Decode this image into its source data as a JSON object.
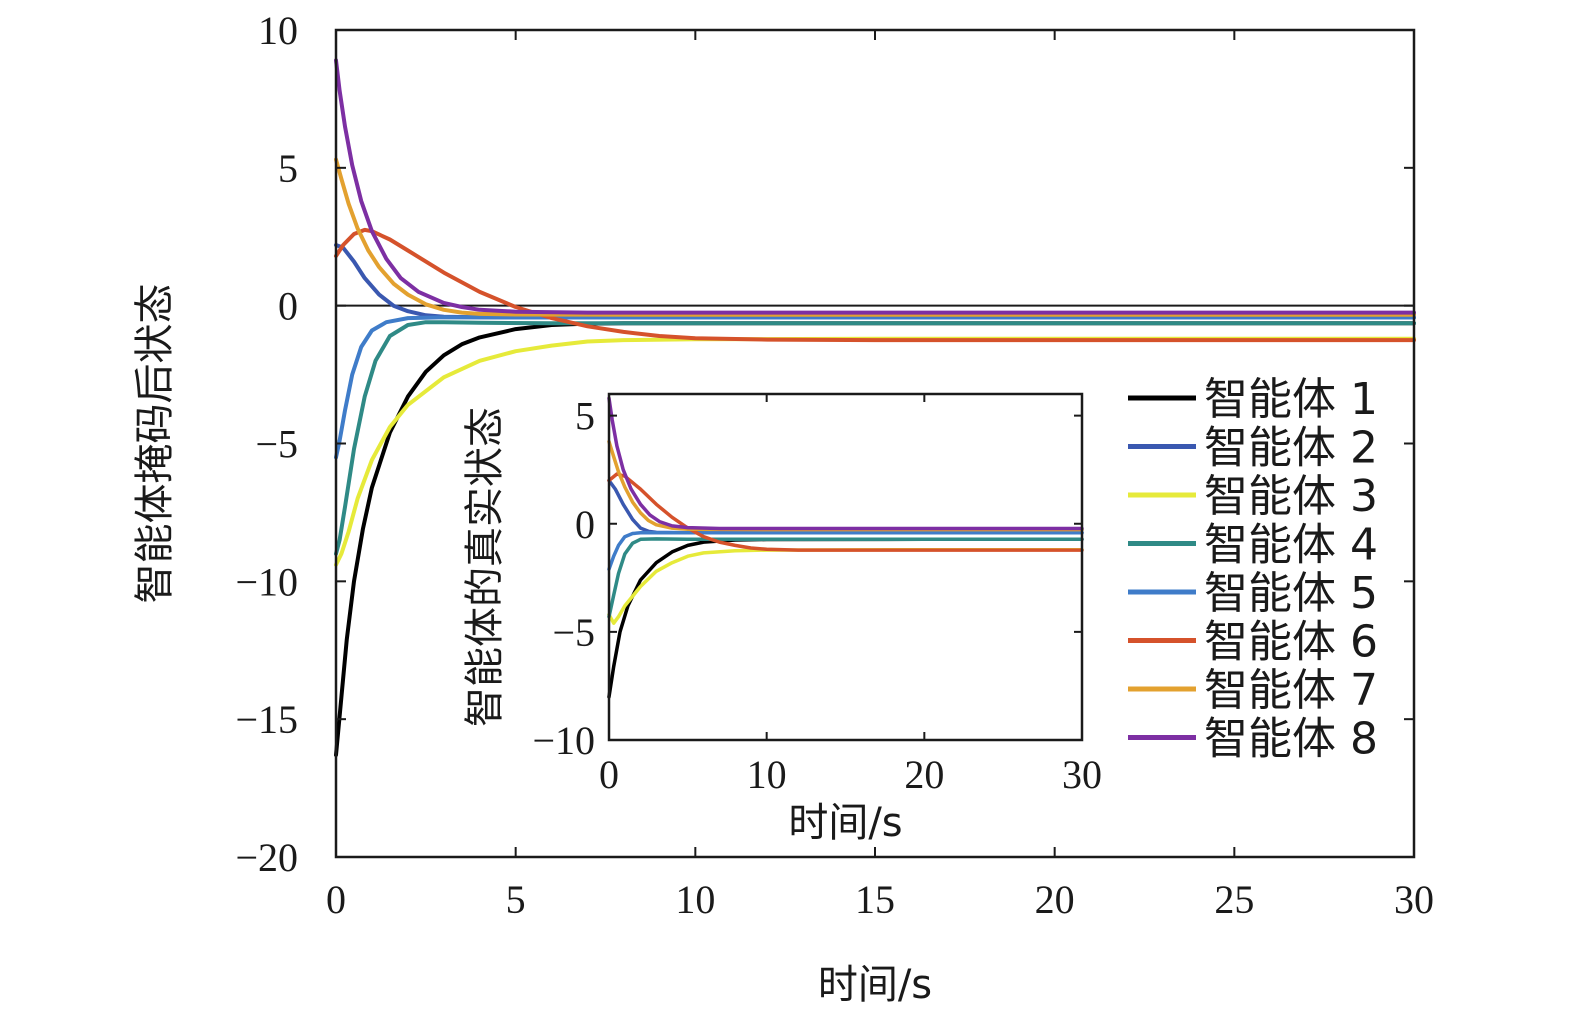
{
  "chart_data": [
    {
      "type": "line",
      "xlabel": "时间/s",
      "ylabel": "智能体掩码后状态",
      "xlim": [
        0,
        30
      ],
      "ylim": [
        -20,
        10
      ],
      "xticks": [
        0,
        5,
        10,
        15,
        20,
        25,
        30
      ],
      "yticks": [
        10,
        5,
        0,
        -5,
        -10,
        -15,
        -20
      ],
      "reference_line": 0,
      "grid": false,
      "series": [
        {
          "name": "智能体 1",
          "color": "#000000",
          "points": [
            [
              0,
              -16.3
            ],
            [
              0.15,
              -14.2
            ],
            [
              0.3,
              -12.1
            ],
            [
              0.5,
              -10.0
            ],
            [
              0.75,
              -8.1
            ],
            [
              1,
              -6.6
            ],
            [
              1.5,
              -4.6
            ],
            [
              2,
              -3.3
            ],
            [
              2.5,
              -2.4
            ],
            [
              3,
              -1.8
            ],
            [
              3.5,
              -1.4
            ],
            [
              4,
              -1.15
            ],
            [
              5,
              -0.85
            ],
            [
              6,
              -0.7
            ],
            [
              7,
              -0.65
            ],
            [
              8,
              -0.64
            ],
            [
              10,
              -0.64
            ],
            [
              15,
              -0.64
            ],
            [
              20,
              -0.64
            ],
            [
              30,
              -0.64
            ]
          ]
        },
        {
          "name": "智能体 2",
          "color": "#3a58b0",
          "points": [
            [
              0,
              2.2
            ],
            [
              0.2,
              2.1
            ],
            [
              0.5,
              1.6
            ],
            [
              0.8,
              1.0
            ],
            [
              1.2,
              0.4
            ],
            [
              1.6,
              0.0
            ],
            [
              2,
              -0.2
            ],
            [
              2.5,
              -0.35
            ],
            [
              3,
              -0.4
            ],
            [
              4,
              -0.42
            ],
            [
              6,
              -0.43
            ],
            [
              10,
              -0.43
            ],
            [
              20,
              -0.43
            ],
            [
              30,
              -0.43
            ]
          ]
        },
        {
          "name": "智能体 3",
          "color": "#e6ea3a",
          "points": [
            [
              0,
              -9.4
            ],
            [
              0.15,
              -9.0
            ],
            [
              0.35,
              -8.2
            ],
            [
              0.6,
              -7.0
            ],
            [
              1,
              -5.6
            ],
            [
              1.5,
              -4.4
            ],
            [
              2,
              -3.6
            ],
            [
              3,
              -2.6
            ],
            [
              4,
              -2.0
            ],
            [
              5,
              -1.65
            ],
            [
              6,
              -1.45
            ],
            [
              7,
              -1.3
            ],
            [
              8,
              -1.25
            ],
            [
              10,
              -1.22
            ],
            [
              15,
              -1.2
            ],
            [
              20,
              -1.2
            ],
            [
              30,
              -1.2
            ]
          ]
        },
        {
          "name": "智能体 4",
          "color": "#2f8a86",
          "points": [
            [
              0,
              -9.0
            ],
            [
              0.1,
              -8.5
            ],
            [
              0.25,
              -7.3
            ],
            [
              0.5,
              -5.2
            ],
            [
              0.8,
              -3.3
            ],
            [
              1.1,
              -2.0
            ],
            [
              1.5,
              -1.1
            ],
            [
              2,
              -0.7
            ],
            [
              2.5,
              -0.6
            ],
            [
              3,
              -0.6
            ],
            [
              4,
              -0.62
            ],
            [
              6,
              -0.64
            ],
            [
              10,
              -0.64
            ],
            [
              20,
              -0.64
            ],
            [
              30,
              -0.64
            ]
          ]
        },
        {
          "name": "智能体 5",
          "color": "#3f7cc9",
          "points": [
            [
              0,
              -5.5
            ],
            [
              0.1,
              -4.9
            ],
            [
              0.25,
              -3.8
            ],
            [
              0.45,
              -2.5
            ],
            [
              0.7,
              -1.5
            ],
            [
              1,
              -0.9
            ],
            [
              1.4,
              -0.6
            ],
            [
              2,
              -0.45
            ],
            [
              3,
              -0.42
            ],
            [
              5,
              -0.43
            ],
            [
              10,
              -0.43
            ],
            [
              20,
              -0.43
            ],
            [
              30,
              -0.43
            ]
          ]
        },
        {
          "name": "智能体 6",
          "color": "#d5522b",
          "points": [
            [
              0,
              1.8
            ],
            [
              0.2,
              2.2
            ],
            [
              0.5,
              2.6
            ],
            [
              0.8,
              2.75
            ],
            [
              1,
              2.7
            ],
            [
              1.5,
              2.4
            ],
            [
              2,
              2.0
            ],
            [
              3,
              1.2
            ],
            [
              4,
              0.5
            ],
            [
              5,
              -0.05
            ],
            [
              6,
              -0.45
            ],
            [
              7,
              -0.75
            ],
            [
              8,
              -0.95
            ],
            [
              9,
              -1.1
            ],
            [
              10,
              -1.18
            ],
            [
              12,
              -1.23
            ],
            [
              15,
              -1.25
            ],
            [
              20,
              -1.25
            ],
            [
              30,
              -1.25
            ]
          ]
        },
        {
          "name": "智能体 7",
          "color": "#e3a12f",
          "points": [
            [
              0,
              5.3
            ],
            [
              0.15,
              4.6
            ],
            [
              0.35,
              3.7
            ],
            [
              0.6,
              2.8
            ],
            [
              0.9,
              2.0
            ],
            [
              1.2,
              1.4
            ],
            [
              1.6,
              0.8
            ],
            [
              2,
              0.4
            ],
            [
              2.5,
              0.05
            ],
            [
              3,
              -0.15
            ],
            [
              3.5,
              -0.25
            ],
            [
              4,
              -0.3
            ],
            [
              5,
              -0.32
            ],
            [
              10,
              -0.33
            ],
            [
              20,
              -0.33
            ],
            [
              30,
              -0.33
            ]
          ]
        },
        {
          "name": "智能体 8",
          "color": "#7d2fa3",
          "points": [
            [
              0,
              8.9
            ],
            [
              0.1,
              7.8
            ],
            [
              0.25,
              6.5
            ],
            [
              0.45,
              5.1
            ],
            [
              0.7,
              3.8
            ],
            [
              1,
              2.7
            ],
            [
              1.4,
              1.7
            ],
            [
              1.8,
              1.0
            ],
            [
              2.3,
              0.5
            ],
            [
              3,
              0.1
            ],
            [
              3.5,
              -0.05
            ],
            [
              4,
              -0.15
            ],
            [
              5,
              -0.22
            ],
            [
              7,
              -0.25
            ],
            [
              10,
              -0.25
            ],
            [
              20,
              -0.25
            ],
            [
              30,
              -0.25
            ]
          ]
        }
      ]
    },
    {
      "type": "line",
      "xlabel": "时间/s",
      "ylabel": "智能体的真实状态",
      "xlim": [
        0,
        30
      ],
      "ylim": [
        -10,
        6
      ],
      "xticks": [
        0,
        10,
        20,
        30
      ],
      "yticks": [
        5,
        0,
        -5,
        -10
      ],
      "grid": false,
      "series": [
        {
          "name": "智能体 1",
          "color": "#000000",
          "points": [
            [
              0,
              -8.0
            ],
            [
              0.3,
              -6.6
            ],
            [
              0.7,
              -5.0
            ],
            [
              1.2,
              -3.8
            ],
            [
              2,
              -2.6
            ],
            [
              3,
              -1.8
            ],
            [
              4,
              -1.3
            ],
            [
              5,
              -1.0
            ],
            [
              6,
              -0.85
            ],
            [
              8,
              -0.75
            ],
            [
              10,
              -0.73
            ],
            [
              20,
              -0.72
            ],
            [
              30,
              -0.72
            ]
          ]
        },
        {
          "name": "智能体 2",
          "color": "#3a58b0",
          "points": [
            [
              0,
              2.0
            ],
            [
              0.4,
              1.6
            ],
            [
              0.9,
              0.9
            ],
            [
              1.5,
              0.2
            ],
            [
              2,
              -0.2
            ],
            [
              2.5,
              -0.35
            ],
            [
              3,
              -0.4
            ],
            [
              5,
              -0.42
            ],
            [
              10,
              -0.42
            ],
            [
              20,
              -0.42
            ],
            [
              30,
              -0.42
            ]
          ]
        },
        {
          "name": "智能体 3",
          "color": "#e6ea3a",
          "points": [
            [
              0,
              -4.2
            ],
            [
              0.3,
              -4.6
            ],
            [
              0.6,
              -4.3
            ],
            [
              1,
              -3.8
            ],
            [
              2,
              -2.9
            ],
            [
              3,
              -2.2
            ],
            [
              4,
              -1.8
            ],
            [
              5,
              -1.5
            ],
            [
              6,
              -1.35
            ],
            [
              8,
              -1.25
            ],
            [
              10,
              -1.22
            ],
            [
              20,
              -1.2
            ],
            [
              30,
              -1.2
            ]
          ]
        },
        {
          "name": "智能体 4",
          "color": "#2f8a86",
          "points": [
            [
              0,
              -4.3
            ],
            [
              0.3,
              -3.3
            ],
            [
              0.6,
              -2.3
            ],
            [
              1,
              -1.4
            ],
            [
              1.5,
              -0.9
            ],
            [
              2,
              -0.72
            ],
            [
              3,
              -0.7
            ],
            [
              5,
              -0.72
            ],
            [
              10,
              -0.72
            ],
            [
              20,
              -0.72
            ],
            [
              30,
              -0.72
            ]
          ]
        },
        {
          "name": "智能体 5",
          "color": "#3f7cc9",
          "points": [
            [
              0,
              -2.1
            ],
            [
              0.3,
              -1.5
            ],
            [
              0.6,
              -1.0
            ],
            [
              1,
              -0.6
            ],
            [
              1.5,
              -0.45
            ],
            [
              2,
              -0.42
            ],
            [
              5,
              -0.42
            ],
            [
              10,
              -0.42
            ],
            [
              20,
              -0.42
            ],
            [
              30,
              -0.42
            ]
          ]
        },
        {
          "name": "智能体 6",
          "color": "#d5522b",
          "points": [
            [
              0,
              2.0
            ],
            [
              0.5,
              2.3
            ],
            [
              1,
              2.2
            ],
            [
              2,
              1.6
            ],
            [
              3,
              0.9
            ],
            [
              4,
              0.3
            ],
            [
              5,
              -0.2
            ],
            [
              6,
              -0.6
            ],
            [
              7,
              -0.85
            ],
            [
              8,
              -1.0
            ],
            [
              9,
              -1.12
            ],
            [
              10,
              -1.18
            ],
            [
              12,
              -1.22
            ],
            [
              15,
              -1.22
            ],
            [
              20,
              -1.22
            ],
            [
              30,
              -1.22
            ]
          ]
        },
        {
          "name": "智能体 7",
          "color": "#e3a12f",
          "points": [
            [
              0,
              3.8
            ],
            [
              0.3,
              3.1
            ],
            [
              0.6,
              2.4
            ],
            [
              1,
              1.7
            ],
            [
              1.5,
              1.0
            ],
            [
              2,
              0.5
            ],
            [
              2.5,
              0.15
            ],
            [
              3,
              -0.05
            ],
            [
              4,
              -0.2
            ],
            [
              5,
              -0.25
            ],
            [
              10,
              -0.27
            ],
            [
              20,
              -0.27
            ],
            [
              30,
              -0.27
            ]
          ]
        },
        {
          "name": "智能体 8",
          "color": "#7d2fa3",
          "points": [
            [
              0,
              5.8
            ],
            [
              0.2,
              4.8
            ],
            [
              0.5,
              3.6
            ],
            [
              0.9,
              2.5
            ],
            [
              1.4,
              1.6
            ],
            [
              2,
              0.9
            ],
            [
              2.6,
              0.4
            ],
            [
              3.2,
              0.1
            ],
            [
              4,
              -0.1
            ],
            [
              5,
              -0.18
            ],
            [
              7,
              -0.22
            ],
            [
              10,
              -0.22
            ],
            [
              20,
              -0.22
            ],
            [
              30,
              -0.22
            ]
          ]
        }
      ]
    }
  ]
}
